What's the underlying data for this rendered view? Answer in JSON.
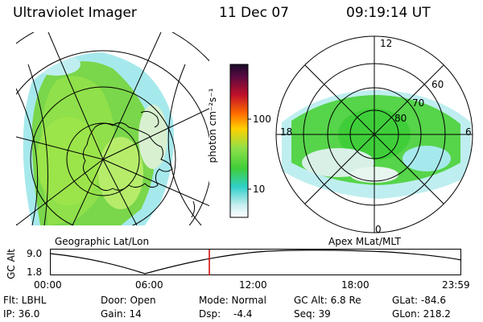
{
  "header": {
    "instrument": "Ultraviolet Imager",
    "date": "11 Dec 07",
    "time": "09:19:14 UT"
  },
  "left_panel": {
    "caption": "Geographic Lat/Lon"
  },
  "right_panel": {
    "caption": "Apex MLat/MLT",
    "mlt_labels": {
      "top": "12",
      "bottom": "0",
      "left": "18",
      "right": "6"
    },
    "lat_labels": [
      "60",
      "70",
      "80"
    ]
  },
  "colorbar": {
    "unit_label": "photon cm⁻²s⁻¹",
    "tick_labels": [
      "100",
      "10"
    ]
  },
  "altitude_plot": {
    "axis_label": "GC Alt",
    "y_max_label": "9.0",
    "y_min_label": "1.8",
    "x_ticks": [
      "00:00",
      "06:00",
      "12:00",
      "18:00",
      "23:59"
    ],
    "cursor_hour": 9.32,
    "cursor_color": "#d00000"
  },
  "info": {
    "filter": "Flt: LBHL",
    "ip": "IP: 36.0",
    "door": "Door: Open",
    "gain": "Gain: 14",
    "mode": "Mode: Normal",
    "dsp_label": "Dsp:",
    "dsp_value": "-4.4",
    "gc_alt": "GC Alt: 6.8 Re",
    "seq": "Seq: 39",
    "glat": "GLat: -84.6",
    "glon": "GLon: 218.2"
  }
}
